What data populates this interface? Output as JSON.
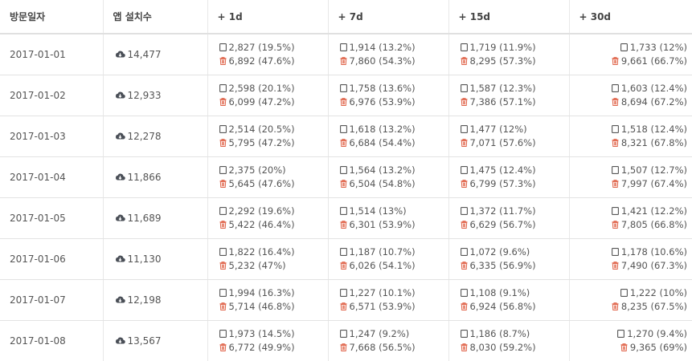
{
  "table": {
    "headers": [
      "방문일자",
      "앱 설치수",
      "+ 1d",
      "+ 7d",
      "+ 15d",
      "+ 30d"
    ],
    "rows": [
      [
        "2017-01-01",
        "14,477",
        [
          "2,827 (19.5%)",
          "6,892 (47.6%)"
        ],
        [
          "1,914 (13.2%)",
          "7,860 (54.3%)"
        ],
        [
          "1,719 (11.9%)",
          "8,295 (57.3%)"
        ],
        [
          "1,733 (12%)",
          "9,661 (66.7%)"
        ]
      ],
      [
        "2017-01-02",
        "12,933",
        [
          "2,598 (20.1%)",
          "6,099 (47.2%)"
        ],
        [
          "1,758 (13.6%)",
          "6,976 (53.9%)"
        ],
        [
          "1,587 (12.3%)",
          "7,386 (57.1%)"
        ],
        [
          "1,603 (12.4%)",
          "8,694 (67.2%)"
        ]
      ],
      [
        "2017-01-03",
        "12,278",
        [
          "2,514 (20.5%)",
          "5,795 (47.2%)"
        ],
        [
          "1,618 (13.2%)",
          "6,684 (54.4%)"
        ],
        [
          "1,477 (12%)",
          "7,071 (57.6%)"
        ],
        [
          "1,518 (12.4%)",
          "8,321 (67.8%)"
        ]
      ],
      [
        "2017-01-04",
        "11,866",
        [
          "2,375 (20%)",
          "5,645 (47.6%)"
        ],
        [
          "1,564 (13.2%)",
          "6,504 (54.8%)"
        ],
        [
          "1,475 (12.4%)",
          "6,799 (57.3%)"
        ],
        [
          "1,507 (12.7%)",
          "7,997 (67.4%)"
        ]
      ],
      [
        "2017-01-05",
        "11,689",
        [
          "2,292 (19.6%)",
          "5,422 (46.4%)"
        ],
        [
          "1,514 (13%)",
          "6,301 (53.9%)"
        ],
        [
          "1,372 (11.7%)",
          "6,629 (56.7%)"
        ],
        [
          "1,421 (12.2%)",
          "7,805 (66.8%)"
        ]
      ],
      [
        "2017-01-06",
        "11,130",
        [
          "1,822 (16.4%)",
          "5,232 (47%)"
        ],
        [
          "1,187 (10.7%)",
          "6,026 (54.1%)"
        ],
        [
          "1,072 (9.6%)",
          "6,335 (56.9%)"
        ],
        [
          "1,178 (10.6%)",
          "7,490 (67.3%)"
        ]
      ],
      [
        "2017-01-07",
        "12,198",
        [
          "1,994 (16.3%)",
          "5,714 (46.8%)"
        ],
        [
          "1,227 (10.1%)",
          "6,571 (53.9%)"
        ],
        [
          "1,108 (9.1%)",
          "6,924 (56.8%)"
        ],
        [
          "1,222 (10%)",
          "8,235 (67.5%)"
        ]
      ],
      [
        "2017-01-08",
        "13,567",
        [
          "1,973 (14.5%)",
          "6,772 (49.9%)"
        ],
        [
          "1,247 (9.2%)",
          "7,668 (56.5%)"
        ],
        [
          "1,186 (8.7%)",
          "8,030 (59.2%)"
        ],
        [
          "1,270 (9.4%)",
          "9,365 (69%)"
        ]
      ]
    ]
  }
}
